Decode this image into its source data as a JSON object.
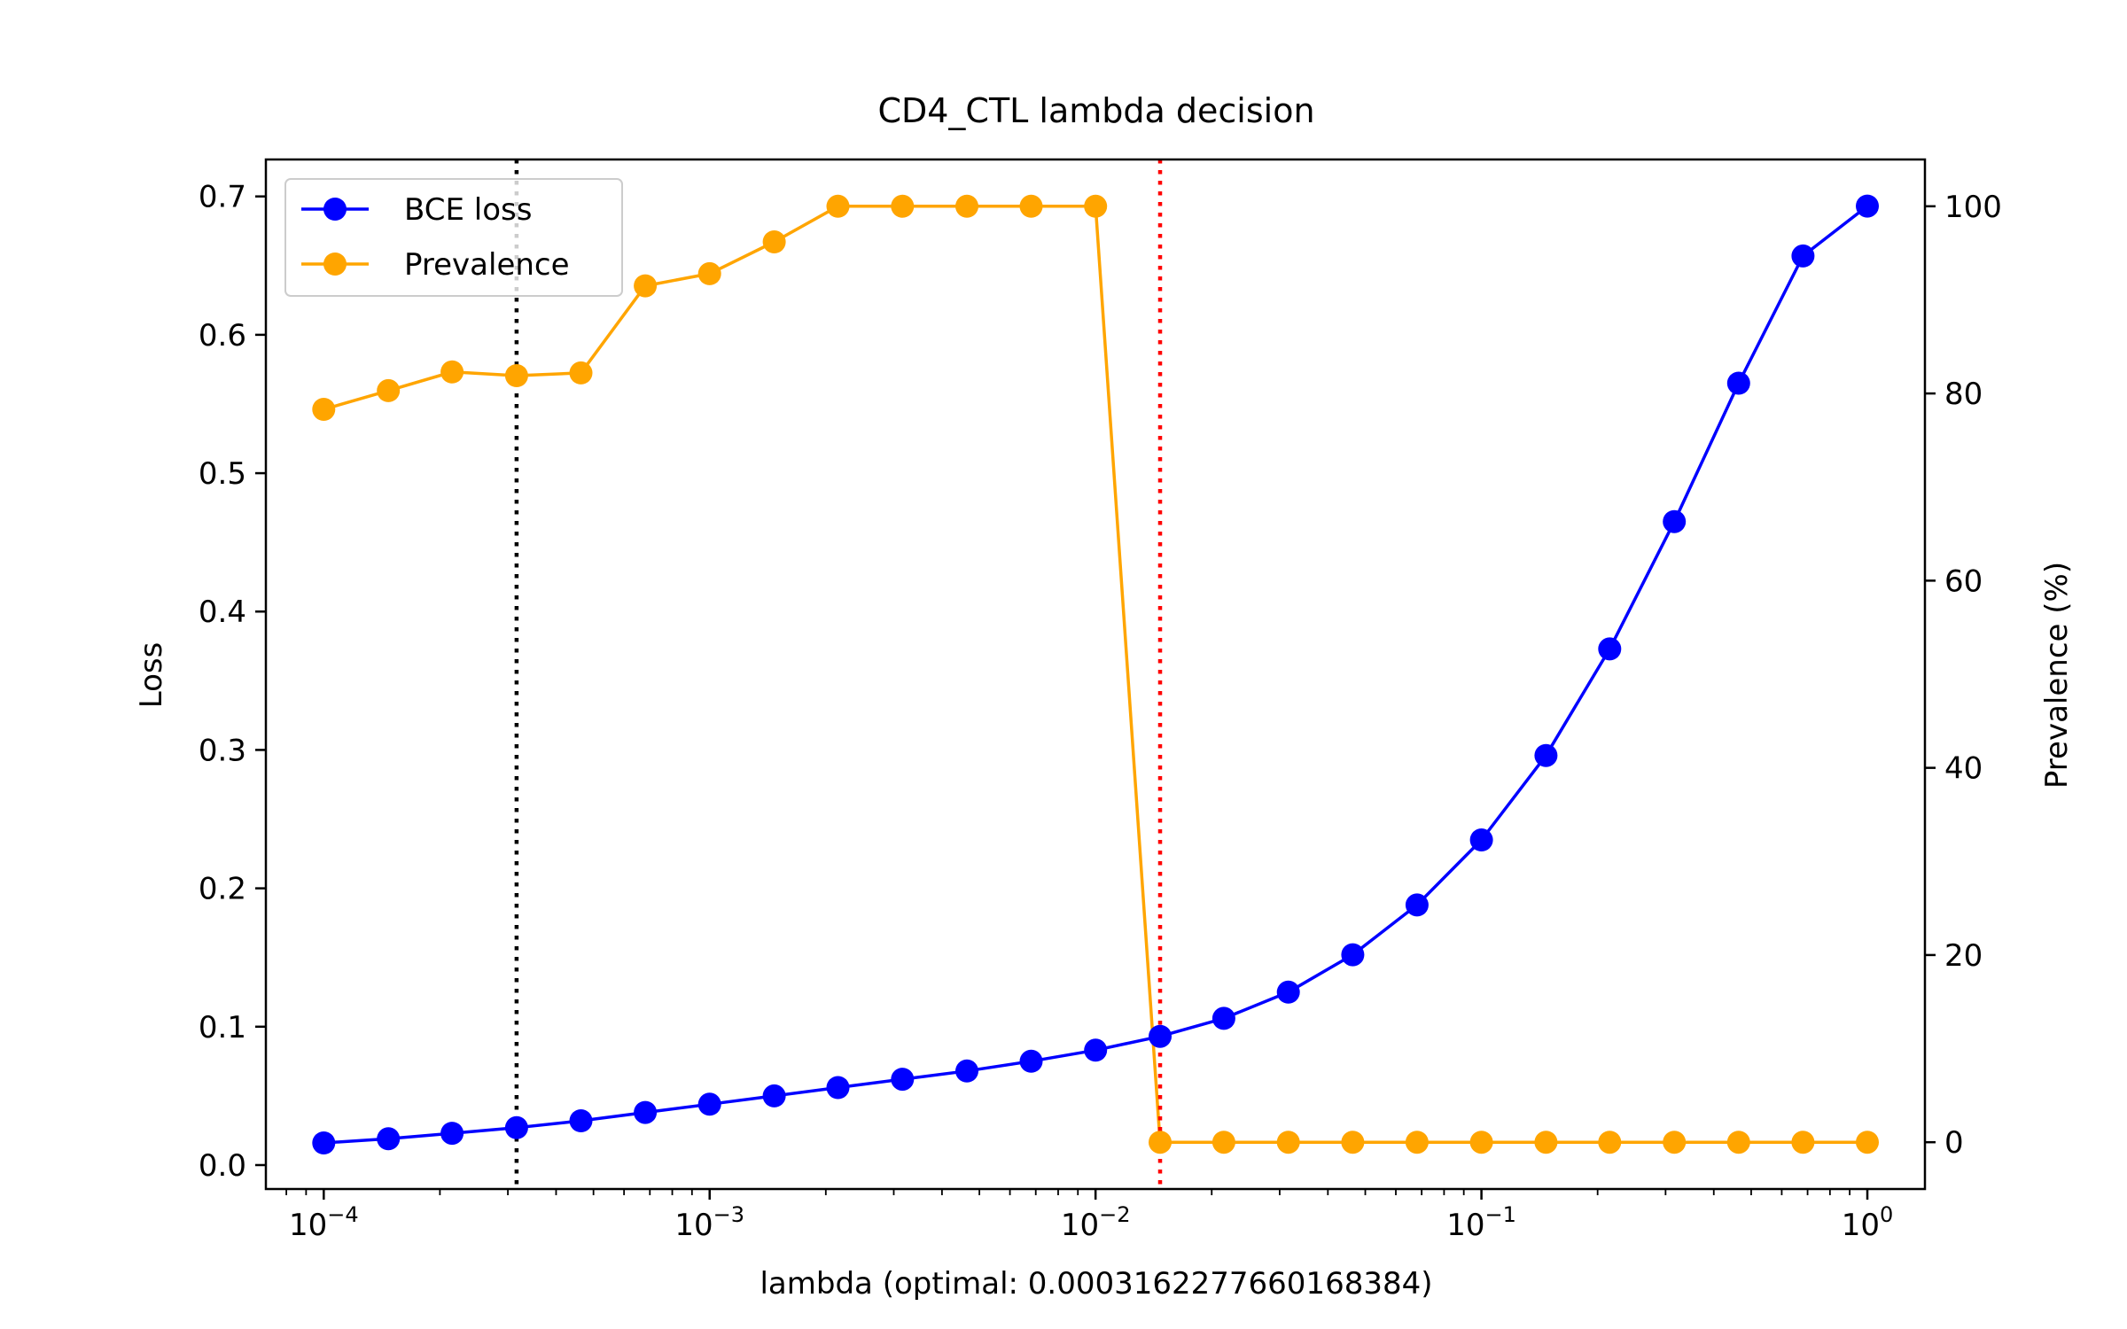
{
  "chart_data": {
    "type": "line",
    "title": "CD4_CTL lambda decision",
    "xlabel": "lambda (optimal: 0.0003162277660168384)",
    "ylabel": "Loss",
    "y2label": "Prevalence (%)",
    "xscale": "log",
    "xlim": [
      7.08e-05,
      1.41
    ],
    "ylim": [
      -0.0173,
      0.7267
    ],
    "y2lim": [
      -5,
      105
    ],
    "x_ticks": [
      {
        "value": 0.0001,
        "base": "10",
        "exp": "−4"
      },
      {
        "value": 0.001,
        "base": "10",
        "exp": "−3"
      },
      {
        "value": 0.01,
        "base": "10",
        "exp": "−2"
      },
      {
        "value": 0.1,
        "base": "10",
        "exp": "−1"
      },
      {
        "value": 1,
        "base": "10",
        "exp": "0"
      }
    ],
    "y_ticks": [
      {
        "value": 0.0,
        "label": "0.0"
      },
      {
        "value": 0.1,
        "label": "0.1"
      },
      {
        "value": 0.2,
        "label": "0.2"
      },
      {
        "value": 0.3,
        "label": "0.3"
      },
      {
        "value": 0.4,
        "label": "0.4"
      },
      {
        "value": 0.5,
        "label": "0.5"
      },
      {
        "value": 0.6,
        "label": "0.6"
      },
      {
        "value": 0.7,
        "label": "0.7"
      }
    ],
    "y2_ticks": [
      {
        "value": 0,
        "label": "0"
      },
      {
        "value": 20,
        "label": "20"
      },
      {
        "value": 40,
        "label": "40"
      },
      {
        "value": 60,
        "label": "60"
      },
      {
        "value": 80,
        "label": "80"
      },
      {
        "value": 100,
        "label": "100"
      }
    ],
    "x": [
      0.0001,
      0.000147,
      0.000215,
      0.000316,
      0.000464,
      0.000681,
      0.001,
      0.00147,
      0.00215,
      0.00316,
      0.00464,
      0.00681,
      0.01,
      0.0147,
      0.0215,
      0.0316,
      0.0464,
      0.0681,
      0.1,
      0.147,
      0.215,
      0.316,
      0.464,
      0.681,
      1.0
    ],
    "series": [
      {
        "name": "BCE loss",
        "axis": "left",
        "color": "#0000ff",
        "values": [
          0.016,
          0.019,
          0.023,
          0.027,
          0.032,
          0.038,
          0.044,
          0.05,
          0.056,
          0.062,
          0.068,
          0.075,
          0.083,
          0.093,
          0.106,
          0.125,
          0.152,
          0.188,
          0.235,
          0.296,
          0.373,
          0.465,
          0.565,
          0.657,
          0.693
        ]
      },
      {
        "name": "Prevalence",
        "axis": "right",
        "color": "#ffa500",
        "values": [
          78.3,
          80.3,
          82.3,
          81.9,
          82.2,
          91.5,
          92.8,
          96.2,
          100,
          100,
          100,
          100,
          100,
          0,
          0,
          0,
          0,
          0,
          0,
          0,
          0,
          0,
          0,
          0,
          0
        ]
      }
    ],
    "vlines": [
      {
        "x": 0.000316,
        "color": "#000000",
        "style": "dotted"
      },
      {
        "x": 0.0147,
        "color": "#ff0000",
        "style": "dotted"
      }
    ],
    "legend_position": "upper-left",
    "grid": false
  }
}
